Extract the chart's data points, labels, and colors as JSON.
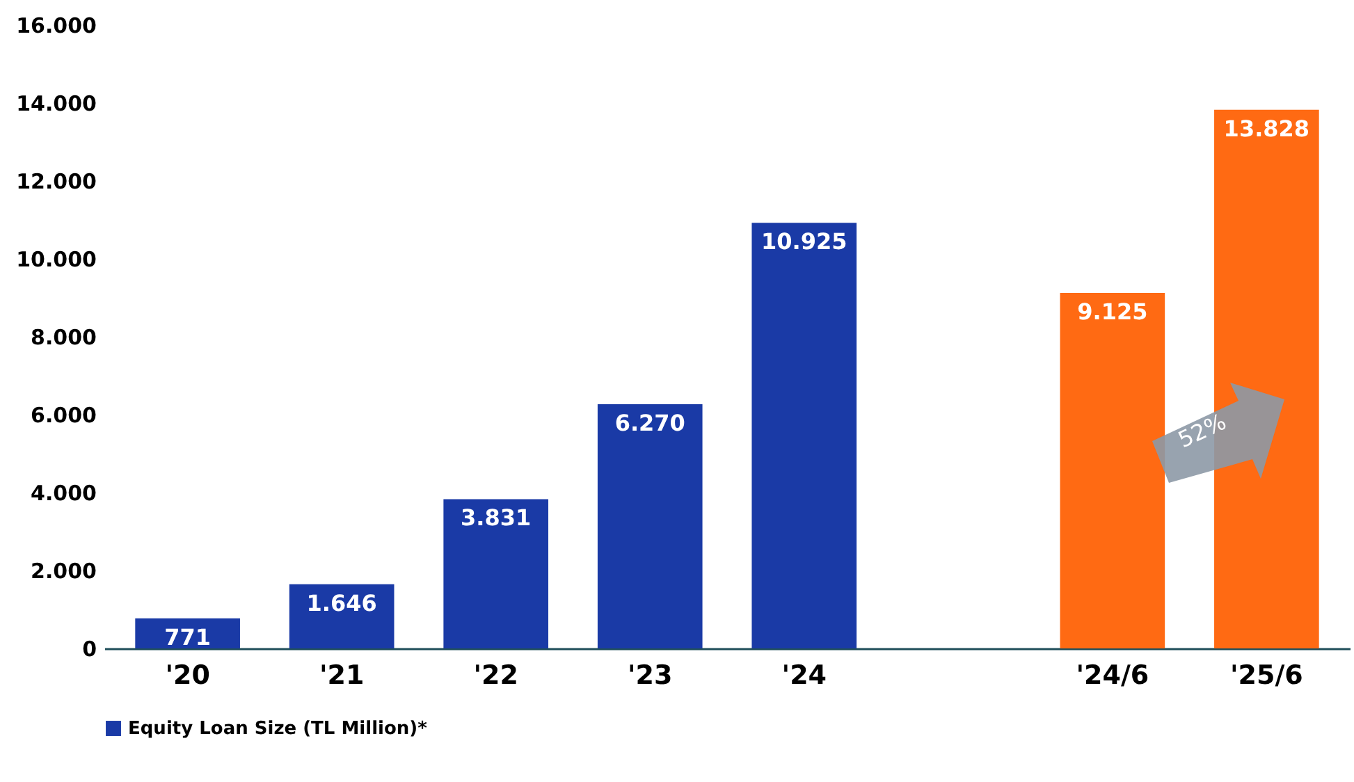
{
  "chart_data": {
    "type": "bar",
    "categories": [
      "'20",
      "'21",
      "'22",
      "'23",
      "'24",
      null,
      "'24/6",
      "'25/6"
    ],
    "series": [
      {
        "name": "Equity Loan Size (TL Million)*",
        "color": "#1a3aa6",
        "colors": [
          "#1a3aa6",
          "#1a3aa6",
          "#1a3aa6",
          "#1a3aa6",
          "#1a3aa6",
          null,
          "#ff6a13",
          "#ff6a13"
        ],
        "values": [
          771,
          1646,
          3831,
          6270,
          10925,
          null,
          9125,
          13828
        ],
        "value_labels": [
          "771",
          "1.646",
          "3.831",
          "6.270",
          "10.925",
          null,
          "9.125",
          "13.828"
        ]
      }
    ],
    "ylim": [
      0,
      16000
    ],
    "yticks": [
      {
        "value": 0,
        "label": "0"
      },
      {
        "value": 2000,
        "label": "2.000"
      },
      {
        "value": 4000,
        "label": "4.000"
      },
      {
        "value": 6000,
        "label": "6.000"
      },
      {
        "value": 8000,
        "label": "8.000"
      },
      {
        "value": 10000,
        "label": "10.000"
      },
      {
        "value": 12000,
        "label": "12.000"
      },
      {
        "value": 14000,
        "label": "14.000"
      },
      {
        "value": 16000,
        "label": "16.000"
      }
    ],
    "grid": false,
    "legend": "bottom",
    "annotations": [
      "52%"
    ]
  }
}
